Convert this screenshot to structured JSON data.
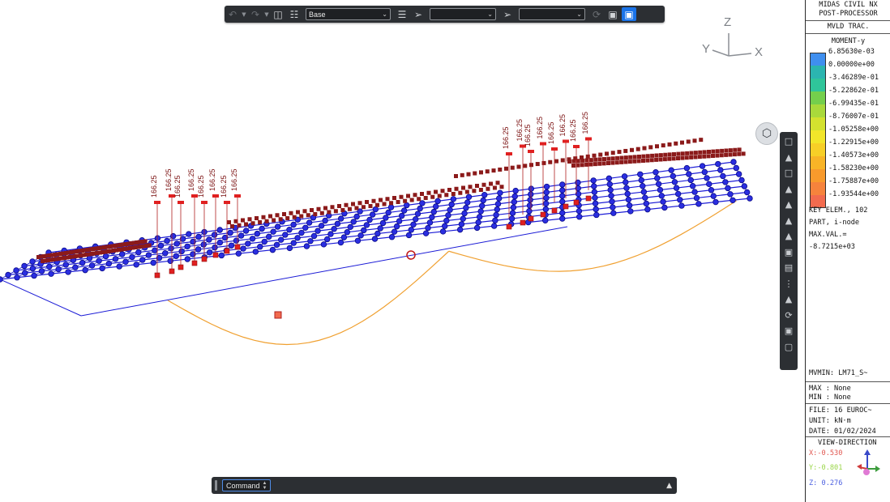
{
  "toolbar": {
    "view_select": "Base",
    "select_two": "",
    "select_three": ""
  },
  "axes": {
    "z": "Z",
    "y": "Y",
    "x": "X"
  },
  "load_value_label": "166.25",
  "command": {
    "label": "Command"
  },
  "post": {
    "title1": "MIDAS CIVIL NX",
    "title2": "POST-PROCESSOR",
    "load_type": "MVLD TRAC.",
    "component": "MOMENT-y",
    "legend": [
      {
        "value": "6.85630e-03",
        "color": "#3f8fef"
      },
      {
        "value": "0.00000e+00",
        "color": "#2bb5b0"
      },
      {
        "value": "-3.46289e-01",
        "color": "#2fc59a"
      },
      {
        "value": "-5.22862e-01",
        "color": "#74cf4c"
      },
      {
        "value": "-6.99435e-01",
        "color": "#a9d93b"
      },
      {
        "value": "-8.76007e-01",
        "color": "#d3e12f"
      },
      {
        "value": "-1.05258e+00",
        "color": "#f2e52a"
      },
      {
        "value": "-1.22915e+00",
        "color": "#f7cf27"
      },
      {
        "value": "-1.40573e+00",
        "color": "#f8b427"
      },
      {
        "value": "-1.58230e+00",
        "color": "#f89a2c"
      },
      {
        "value": "-1.75887e+00",
        "color": "#f6833c"
      },
      {
        "value": "-1.93544e+00",
        "color": "#f26b4e"
      }
    ],
    "key_elem": "KEY ELEM., 102",
    "part": "PART, i-node",
    "max_val_label": "MAX.VAL.=",
    "max_val": "-8.7215e+03",
    "mvmin": "MVMIN: LM71_S~",
    "max": "MAX : None",
    "min": "MIN : None",
    "file": "FILE: 16 EUROC~",
    "unit": "UNIT: kN·m",
    "date": "DATE: 01/02/2024",
    "view_direction_label": "VIEW-DIRECTION",
    "vx": "X:-0.530",
    "vy": "Y:-0.801",
    "vz": "Z: 0.276",
    "vx_color": "#e0564f",
    "vy_color": "#9ad648",
    "vz_color": "#4a5ee0"
  }
}
